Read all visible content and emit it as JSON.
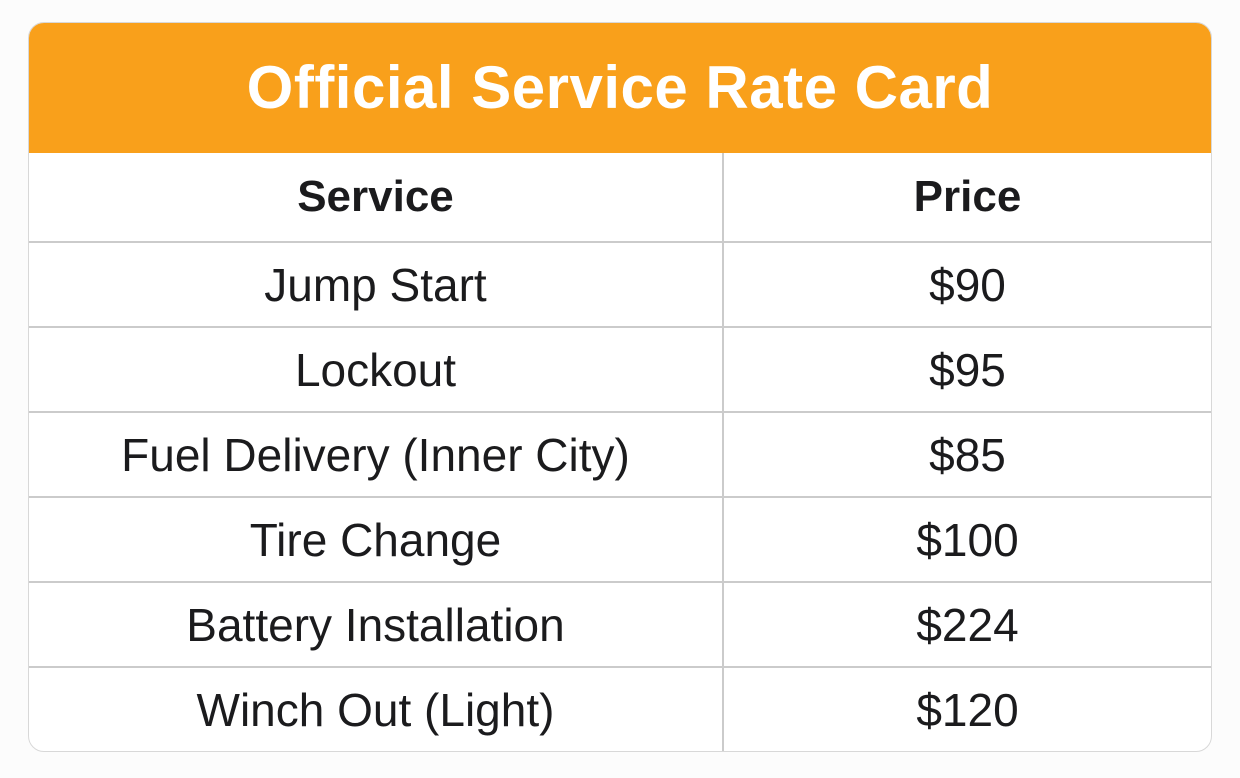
{
  "card": {
    "title": "Official Service Rate Card",
    "table": {
      "columns": [
        "Service",
        "Price"
      ],
      "rows": [
        {
          "service": "Jump Start",
          "price": "$90"
        },
        {
          "service": "Lockout",
          "price": "$95"
        },
        {
          "service": "Fuel Delivery (Inner City)",
          "price": "$85"
        },
        {
          "service": "Tire Change",
          "price": "$100"
        },
        {
          "service": "Battery Installation",
          "price": "$224"
        },
        {
          "service": "Winch Out (Light)",
          "price": "$120"
        }
      ]
    },
    "colors": {
      "header_bg": "#F9A01B",
      "header_text": "#FFFFFF",
      "body_bg": "#FFFFFF",
      "grid_line": "#CBCBCB",
      "text": "#1B1B1D",
      "page_bg": "#FCFCFC"
    }
  },
  "chart_data": {
    "type": "table",
    "title": "Official Service Rate Card",
    "columns": [
      "Service",
      "Price"
    ],
    "rows": [
      [
        "Jump Start",
        "$90"
      ],
      [
        "Lockout",
        "$95"
      ],
      [
        "Fuel Delivery (Inner City)",
        "$85"
      ],
      [
        "Tire Change",
        "$100"
      ],
      [
        "Battery Installation",
        "$224"
      ],
      [
        "Winch Out (Light)",
        "$120"
      ]
    ],
    "prices_numeric": [
      90,
      95,
      85,
      100,
      224,
      120
    ]
  }
}
